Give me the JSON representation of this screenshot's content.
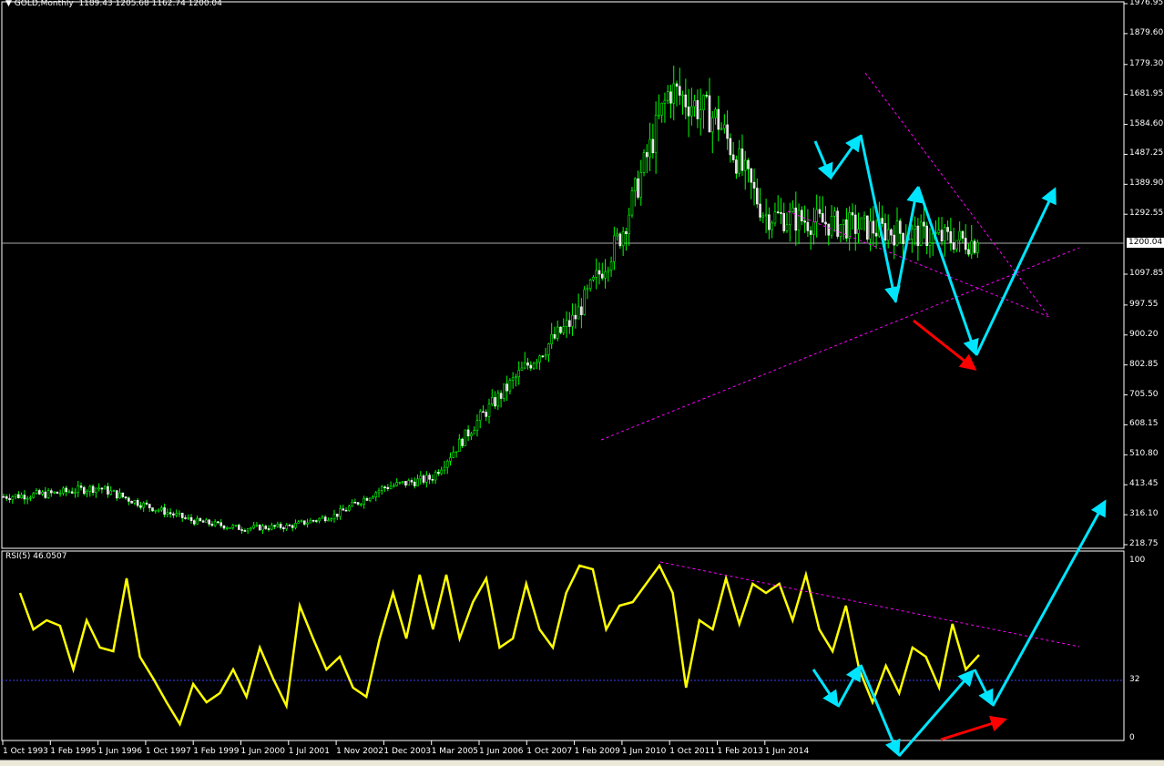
{
  "header": {
    "symbol": "GOLD,Monthly",
    "ohlc": "1189.43 1205.68 1162.74 1200.04"
  },
  "rsi_header": "RSI(5) 46.0507",
  "current_price": "1200.04",
  "price_axis": [
    "1976.95",
    "1879.60",
    "1779.30",
    "1681.95",
    "1584.60",
    "1487.25",
    "1389.90",
    "1292.55",
    "1097.85",
    "997.55",
    "900.20",
    "802.85",
    "705.50",
    "608.15",
    "510.80",
    "413.45",
    "316.10",
    "218.75"
  ],
  "rsi_axis": [
    "100",
    "32",
    "0"
  ],
  "time_axis": [
    "1 Oct 1993",
    "1 Feb 1995",
    "1 Jun 1996",
    "1 Oct 1997",
    "1 Feb 1999",
    "1 Jun 2000",
    "1 Jul 2001",
    "1 Nov 2002",
    "1 Dec 2003",
    "1 Mar 2005",
    "1 Jun 2006",
    "1 Oct 2007",
    "1 Feb 2009",
    "1 Jun 2010",
    "1 Oct 2011",
    "1 Feb 2013",
    "1 Jun 2014"
  ],
  "colors": {
    "bull": "#00ff00",
    "bear": "#ffffff",
    "rsi": "#ffff00",
    "trend": "#ff00ff",
    "arrow": "#00e5ff",
    "red_arrow": "#ff0000",
    "level": "#4040ff"
  },
  "chart_data": {
    "type": "candlestick",
    "title": "GOLD,Monthly",
    "ylim": [
      218.75,
      1976.95
    ],
    "last_close": 1200.04,
    "price_keypoints": [
      [
        "1 Oct 1993",
        375
      ],
      [
        "1 Feb 1995",
        384
      ],
      [
        "1 Jun 1996",
        405
      ],
      [
        "1 Oct 1997",
        346
      ],
      [
        "1 Feb 1999",
        296
      ],
      [
        "1 Jun 2000",
        272
      ],
      [
        "1 Jul 2001",
        278
      ],
      [
        "1 Nov 2002",
        316
      ],
      [
        "1 Dec 2003",
        405
      ],
      [
        "1 Mar 2005",
        435
      ],
      [
        "1 Jun 2006",
        627
      ],
      [
        "1 Oct 2007",
        800
      ],
      [
        "1 Feb 2009",
        953
      ],
      [
        "1 Jun 2010",
        1234
      ],
      [
        "1 Oct 2011",
        1700
      ],
      [
        "1 Feb 2013",
        1600
      ],
      [
        "1 Jun 2014",
        1290
      ],
      [
        "last",
        1200
      ]
    ],
    "rsi": {
      "period": 5,
      "last": 46.0507,
      "ylim": [
        0,
        100
      ],
      "level": 32,
      "values": [
        80,
        60,
        65,
        62,
        38,
        65,
        50,
        48,
        88,
        45,
        33,
        20,
        8,
        30,
        20,
        25,
        38,
        23,
        50,
        33,
        18,
        73,
        55,
        38,
        45,
        28,
        23,
        55,
        80,
        55,
        90,
        60,
        90,
        55,
        75,
        88,
        50,
        55,
        85,
        60,
        50,
        80,
        95,
        93,
        60,
        73,
        75,
        85,
        95,
        80,
        28,
        65,
        60,
        88,
        63,
        85,
        80,
        85,
        65,
        90,
        60,
        48,
        73,
        38,
        20,
        40,
        25,
        50,
        45,
        28,
        63,
        38,
        46
      ]
    }
  }
}
